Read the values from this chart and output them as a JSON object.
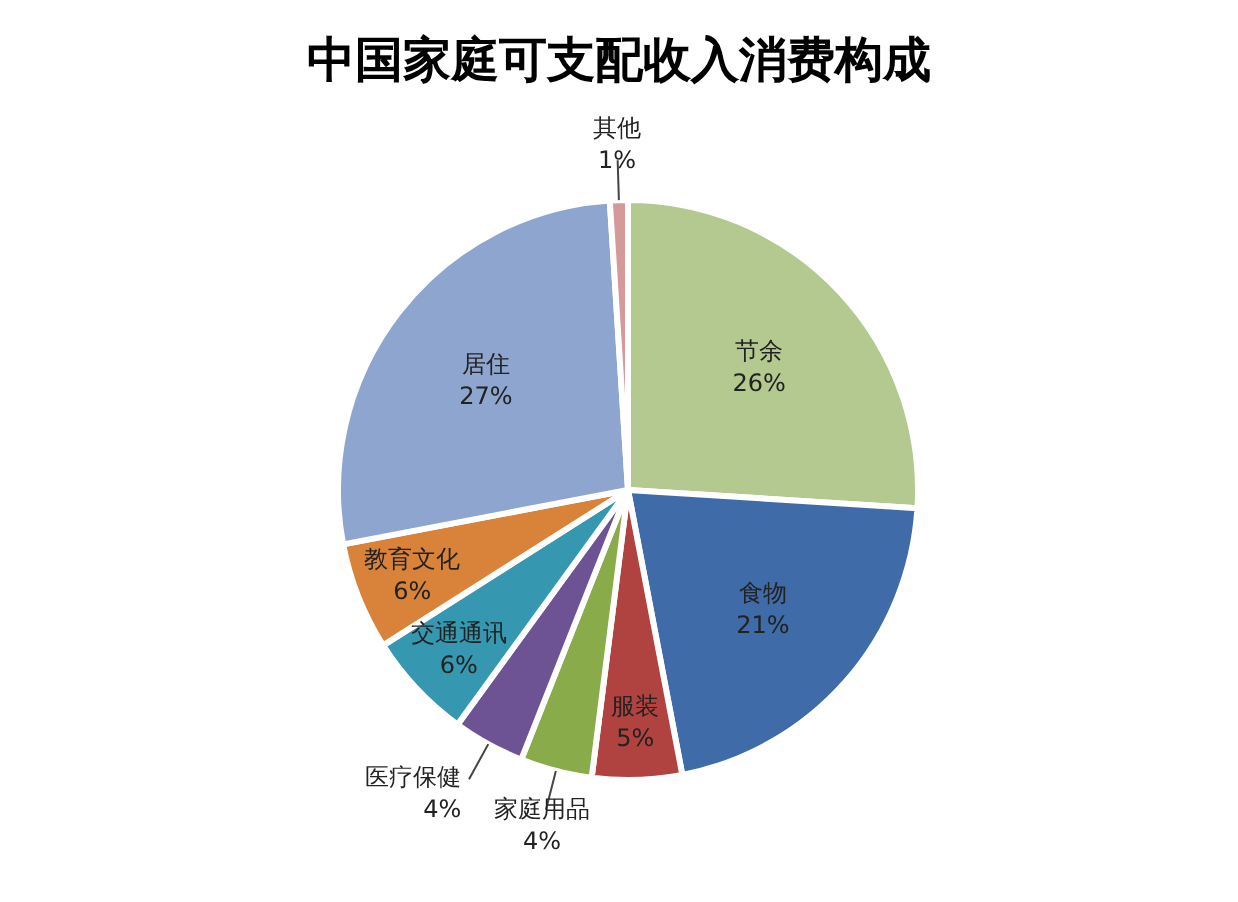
{
  "chart_data": {
    "type": "pie",
    "title": "中国家庭可支配收入消费构成",
    "categories": [
      "节余",
      "食物",
      "服装",
      "家庭用品",
      "医疗保健",
      "交通通讯",
      "教育文化",
      "居住",
      "其他"
    ],
    "values": [
      26,
      21,
      5,
      4,
      4,
      6,
      6,
      27,
      1
    ],
    "value_labels": [
      "26%",
      "21%",
      "5%",
      "4%",
      "4%",
      "6%",
      "6%",
      "27%",
      "1%"
    ],
    "colors": [
      "#b3c98f",
      "#3f6ba8",
      "#b04340",
      "#8aab4a",
      "#6e5394",
      "#3598b0",
      "#d9823a",
      "#8ea6cf",
      "#d49a9a"
    ],
    "legend": false
  }
}
